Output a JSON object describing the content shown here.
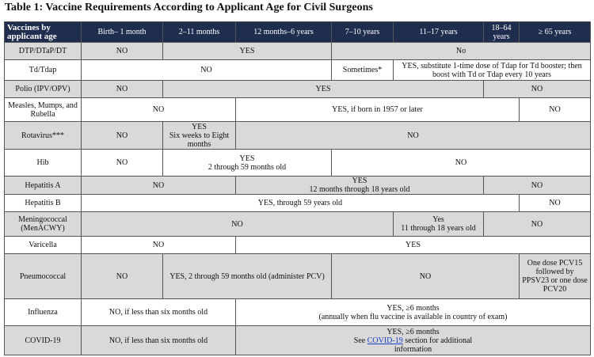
{
  "title": "Table 1:  Vaccine Requirements According to Applicant Age for Civil Surgeons",
  "table": {
    "header": [
      "Vaccines by applicant age",
      "Birth– 1 month",
      "2–11 months",
      "12 months–6 years",
      "7–10 years",
      "11–17 years",
      "18–64 years",
      "≥ 65 years"
    ],
    "rows": [
      {
        "vaccine": "DTP/DTaP/DT",
        "cells": [
          "NO",
          "YES",
          "No"
        ]
      },
      {
        "vaccine": "Td/Tdap",
        "cells": [
          "NO",
          "Sometimes*",
          "YES, substitute 1-time dose of Tdap for Td booster; then boost with Td or Tdap every 10 years"
        ]
      },
      {
        "vaccine": "Polio (IPV/OPV)",
        "cells": [
          "NO",
          "YES",
          "NO"
        ]
      },
      {
        "vaccine": "Measles, Mumps, and Rubella",
        "cells": [
          "NO",
          "YES, if born in 1957 or later",
          "NO"
        ]
      },
      {
        "vaccine": "Rotavirus***",
        "cells": [
          "NO",
          [
            "YES",
            "Six weeks to Eight months"
          ],
          "NO"
        ]
      },
      {
        "vaccine": "Hib",
        "cells": [
          "NO",
          [
            "YES",
            "2 through 59 months old"
          ],
          "NO"
        ]
      },
      {
        "vaccine": "Hepatitis A",
        "cells": [
          "NO",
          [
            "YES",
            "12 months through 18 years old"
          ],
          "NO"
        ]
      },
      {
        "vaccine": "Hepatitis B",
        "cells": [
          "YES,  through 59 years old",
          "NO"
        ]
      },
      {
        "vaccine": "Meningococcal (MenACWY)",
        "cells": [
          "NO",
          [
            "Yes",
            "11 through 18 years old"
          ],
          "NO"
        ]
      },
      {
        "vaccine": "Varicella",
        "cells": [
          "NO",
          "YES"
        ]
      },
      {
        "vaccine": "Pneumococcal",
        "cells": [
          "NO",
          "YES, 2 through 59 months old  (administer PCV)",
          "NO",
          "One dose PCV15 followed by PPSV23 or one dose PCV20"
        ]
      },
      {
        "vaccine": "Influenza",
        "cells": [
          "NO, if less than six months old",
          [
            "YES, ≥6 months",
            "(annually when flu vaccine is available in country of exam)"
          ]
        ]
      },
      {
        "vaccine": "COVID-19",
        "cells": [
          "NO, if less than six months old",
          {
            "line": "YES, ≥6 months",
            "see": "See",
            "link": "COVID-19",
            "rest": "section for additional information"
          }
        ]
      }
    ]
  }
}
